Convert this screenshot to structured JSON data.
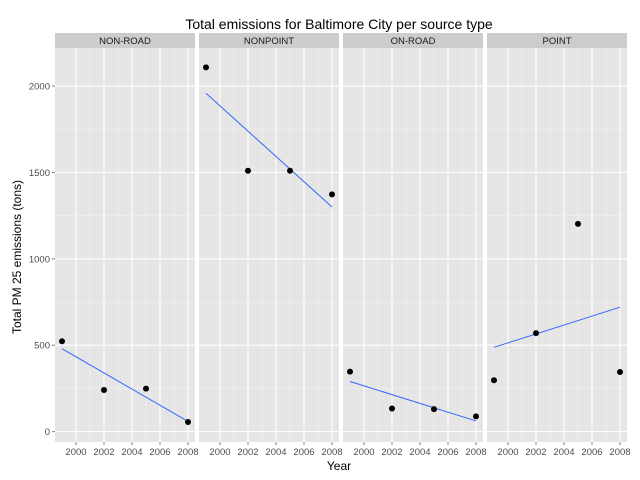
{
  "chart_data": {
    "type": "scatter",
    "title": "Total emissions for Baltimore City per source type",
    "xlabel": "Year",
    "ylabel": "Total PM 25 emissions (tons)",
    "x_ticks": [
      2000,
      2002,
      2004,
      2006,
      2008
    ],
    "y_ticks": [
      0,
      500,
      1000,
      1500,
      2000
    ],
    "xlim": [
      1998.5,
      2008.5
    ],
    "ylim": [
      -60,
      2220
    ],
    "grid": true,
    "facets": [
      {
        "label": "NON-ROAD",
        "points": [
          {
            "x": 1999,
            "y": 523
          },
          {
            "x": 2002,
            "y": 241
          },
          {
            "x": 2005,
            "y": 249
          },
          {
            "x": 2008,
            "y": 56
          }
        ],
        "trend": [
          {
            "x": 1999,
            "y": 480
          },
          {
            "x": 2008,
            "y": 59
          }
        ]
      },
      {
        "label": "NONPOINT",
        "points": [
          {
            "x": 1999,
            "y": 2108
          },
          {
            "x": 2002,
            "y": 1510
          },
          {
            "x": 2005,
            "y": 1510
          },
          {
            "x": 2008,
            "y": 1373
          }
        ],
        "trend": [
          {
            "x": 1999,
            "y": 1958
          },
          {
            "x": 2008,
            "y": 1300
          }
        ]
      },
      {
        "label": "ON-ROAD",
        "points": [
          {
            "x": 1999,
            "y": 347
          },
          {
            "x": 2002,
            "y": 134
          },
          {
            "x": 2005,
            "y": 130
          },
          {
            "x": 2008,
            "y": 88
          }
        ],
        "trend": [
          {
            "x": 1999,
            "y": 290
          },
          {
            "x": 2008,
            "y": 62
          }
        ]
      },
      {
        "label": "POINT",
        "points": [
          {
            "x": 1999,
            "y": 297
          },
          {
            "x": 2002,
            "y": 570
          },
          {
            "x": 2005,
            "y": 1202
          },
          {
            "x": 2008,
            "y": 345
          }
        ],
        "trend": [
          {
            "x": 1999,
            "y": 488
          },
          {
            "x": 2008,
            "y": 720
          }
        ]
      }
    ],
    "colors": {
      "panel": "#e5e5e5",
      "strip": "#cccccc",
      "grid_major": "#ffffff",
      "grid_minor": "#f2f2f2",
      "point": "#000000",
      "trend": "#3366ff",
      "tick_text": "#4d4d4d"
    }
  }
}
